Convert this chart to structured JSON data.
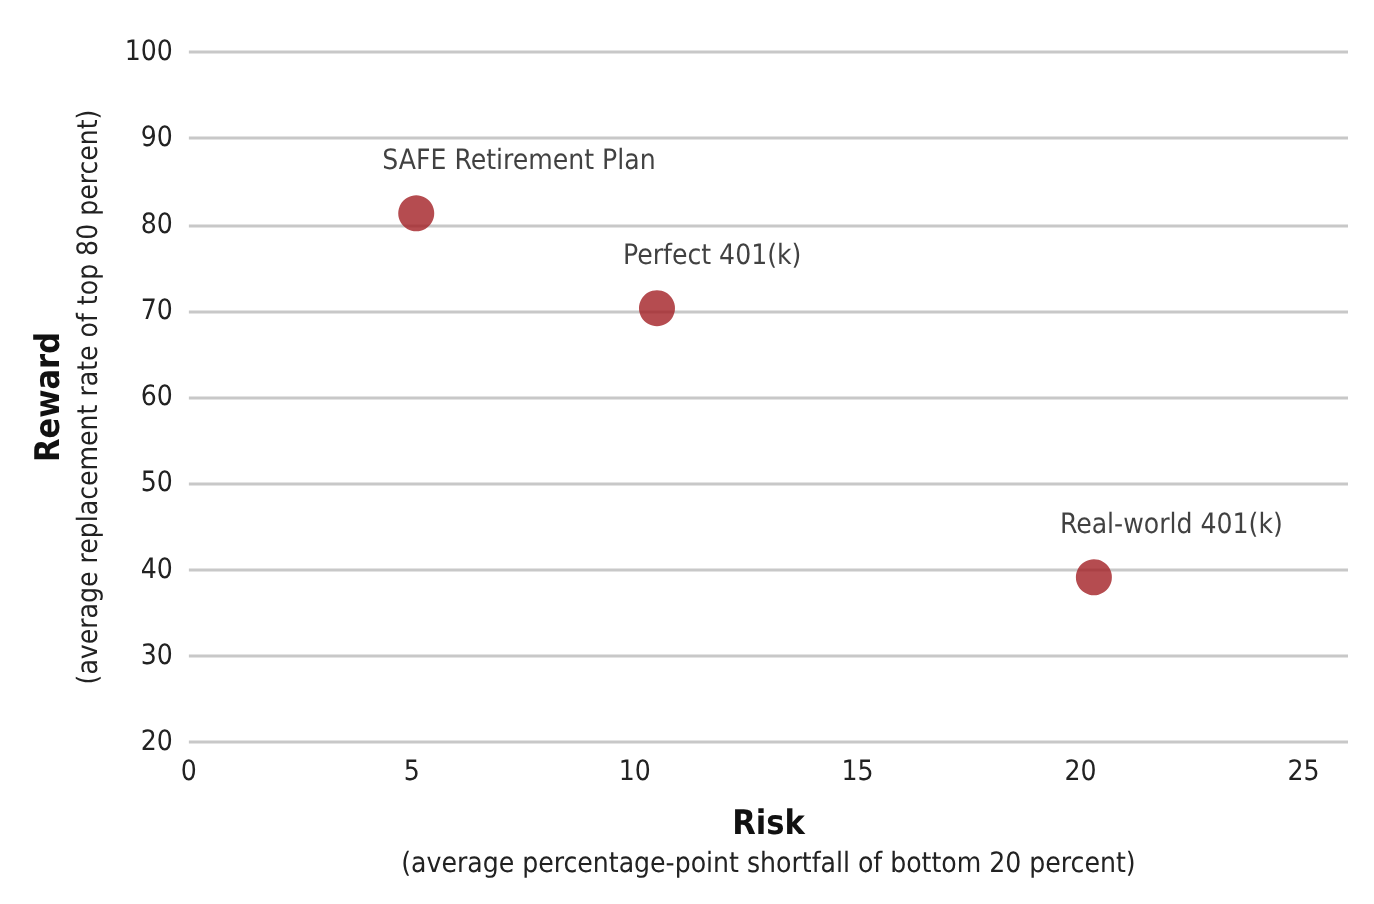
{
  "chart_data": {
    "type": "scatter",
    "xlabel": "Risk\n(average percentage-point shortfall of bottom 20 percent)",
    "ylabel": "Reward\n(average replacement rate of top 80 percent)",
    "x": [
      5.1,
      10.5,
      20.3
    ],
    "series": [
      {
        "color": "#a31f24",
        "values": [
          81.3,
          70.3,
          39.1
        ]
      }
    ],
    "annotations": [
      {
        "text": "SAFE Retirement Plan",
        "x": 5.1,
        "y": 81.3
      },
      {
        "text": "Perfect 401(k)",
        "x": 10.5,
        "y": 70.3
      },
      {
        "text": "Real-world 401(k)",
        "x": 20.3,
        "y": 39.1
      }
    ],
    "xlim": [
      0,
      26
    ],
    "xticks": [
      0,
      5,
      10,
      15,
      20,
      25
    ],
    "ylim": [
      20,
      100
    ],
    "yticks": [
      20,
      30,
      40,
      50,
      60,
      70,
      80,
      90,
      100
    ],
    "grid": "y",
    "marker": "circle"
  }
}
